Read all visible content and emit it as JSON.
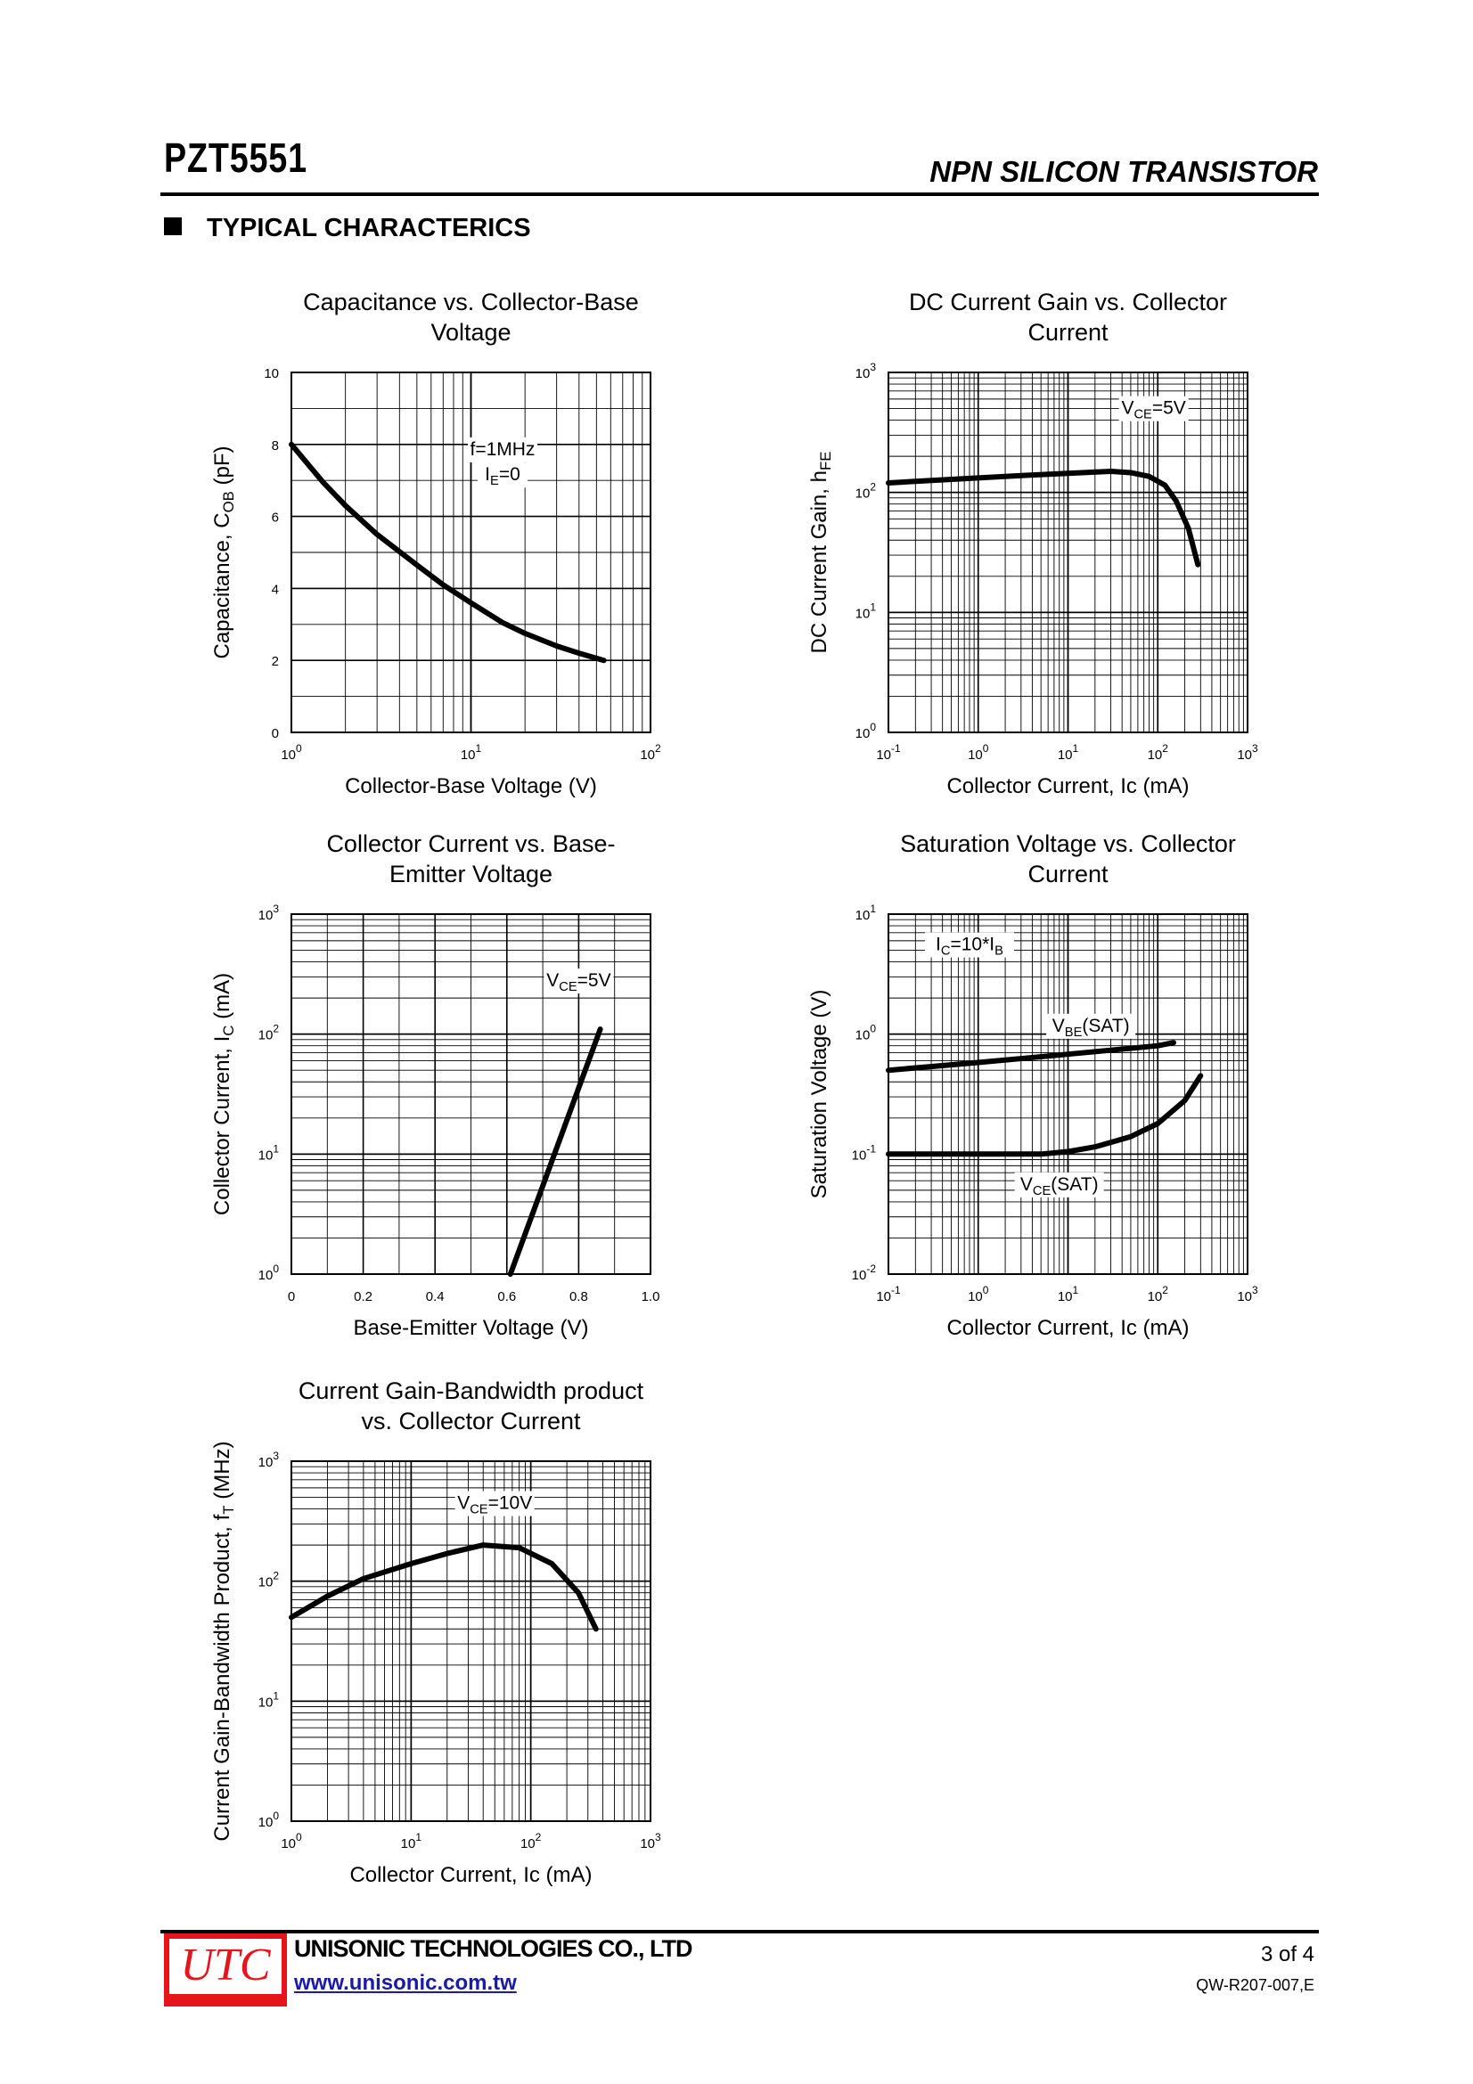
{
  "header": {
    "part_number": "PZT5551",
    "device_type": "NPN SILICON TRANSISTOR"
  },
  "section": {
    "title": "TYPICAL CHARACTERICS"
  },
  "footer": {
    "logo_text": "UTC",
    "company": "UNISONIC TECHNOLOGIES CO., LTD",
    "url": "www.unisonic.com.tw",
    "page": "3 of 4",
    "doc_code": "QW-R207-007,E"
  },
  "chart_data": [
    {
      "id": "cap",
      "type": "line",
      "title": [
        "Capacitance vs. Collector-Base",
        "Voltage"
      ],
      "xlabel": "Collector-Base Voltage (V)",
      "ylabel": "Capacitance, COB (pF)",
      "xscale": "log",
      "xlim": [
        1,
        100
      ],
      "yscale": "linear",
      "ylim": [
        0,
        10
      ],
      "xticks": [
        "10^0",
        "10^1",
        "10^2"
      ],
      "yticks": [
        "0",
        "2",
        "4",
        "6",
        "8",
        "10"
      ],
      "annotations": [
        {
          "text": "f=1MHz",
          "x": 15,
          "y": 7.7
        },
        {
          "text": "IE=0",
          "x": 15,
          "y": 7.0
        }
      ],
      "series": [
        {
          "x": [
            1,
            1.5,
            2,
            3,
            5,
            7,
            10,
            15,
            20,
            30,
            40,
            55
          ],
          "y": [
            8.0,
            6.95,
            6.3,
            5.5,
            4.65,
            4.1,
            3.6,
            3.05,
            2.75,
            2.4,
            2.2,
            2.0
          ]
        }
      ]
    },
    {
      "id": "hfe",
      "type": "line",
      "title": [
        "DC Current Gain vs. Collector",
        "Current"
      ],
      "xlabel": "Collector Current, Ic (mA)",
      "ylabel": "DC Current Gain, hFE",
      "xscale": "log",
      "xlim": [
        0.1,
        1000
      ],
      "yscale": "log",
      "ylim": [
        1,
        1000
      ],
      "xticks": [
        "10^-1",
        "10^0",
        "10^1",
        "10^2",
        "10^3"
      ],
      "yticks": [
        "10^0",
        "10^1",
        "10^2",
        "10^3"
      ],
      "annotations": [
        {
          "text": "VCE=5V",
          "x": 90,
          "y": 450
        }
      ],
      "series": [
        {
          "x": [
            0.1,
            0.3,
            1,
            3,
            10,
            30,
            50,
            80,
            120,
            160,
            220,
            280
          ],
          "y": [
            120,
            126,
            132,
            138,
            144,
            150,
            146,
            136,
            115,
            85,
            50,
            25
          ]
        }
      ]
    },
    {
      "id": "icvbe",
      "type": "line",
      "title": [
        "Collector Current vs. Base-",
        "Emitter Voltage"
      ],
      "xlabel": "Base-Emitter Voltage (V)",
      "ylabel": "Collector Current, IC  (mA)",
      "xscale": "linear",
      "xlim": [
        0,
        1.0
      ],
      "yscale": "log",
      "ylim": [
        1,
        1000
      ],
      "xticks": [
        "0",
        "0.2",
        "0.4",
        "0.6",
        "0.8",
        "1.0"
      ],
      "yticks": [
        "10^0",
        "10^1",
        "10^2",
        "10^3"
      ],
      "annotations": [
        {
          "text": "VCE=5V",
          "x": 0.8,
          "y": 250
        }
      ],
      "series": [
        {
          "x": [
            0.61,
            0.86
          ],
          "y": [
            1,
            110
          ]
        }
      ]
    },
    {
      "id": "vsat",
      "type": "line",
      "title": [
        "Saturation Voltage vs. Collector",
        "Current"
      ],
      "xlabel": "Collector Current, Ic (mA)",
      "ylabel": "Saturation Voltage (V)",
      "xscale": "log",
      "xlim": [
        0.1,
        1000
      ],
      "yscale": "log",
      "ylim": [
        0.01,
        10
      ],
      "xticks": [
        "10^-1",
        "10^0",
        "10^1",
        "10^2",
        "10^3"
      ],
      "yticks": [
        "10^-2",
        "10^-1",
        "10^0",
        "10^1"
      ],
      "annotations": [
        {
          "text": "IC=10*IB",
          "x": 0.8,
          "y": 5
        },
        {
          "text": "VBE(SAT)",
          "x": 18,
          "y": 1.05
        },
        {
          "text": "VCE(SAT)",
          "x": 8,
          "y": 0.05
        }
      ],
      "series": [
        {
          "name": "VBE(SAT)",
          "x": [
            0.1,
            1,
            10,
            100,
            150
          ],
          "y": [
            0.5,
            0.58,
            0.68,
            0.8,
            0.85
          ]
        },
        {
          "name": "VCE(SAT)",
          "x": [
            0.1,
            1,
            5,
            10,
            20,
            50,
            100,
            200,
            300
          ],
          "y": [
            0.1,
            0.1,
            0.1,
            0.105,
            0.115,
            0.14,
            0.18,
            0.28,
            0.45
          ]
        }
      ]
    },
    {
      "id": "ft",
      "type": "line",
      "title": [
        "Current Gain-Bandwidth product",
        "vs. Collector Current"
      ],
      "xlabel": "Collector Current, Ic (mA)",
      "ylabel": "Current Gain-Bandwidth Product, fT (MHz)",
      "xscale": "log",
      "xlim": [
        1,
        1000
      ],
      "yscale": "log",
      "ylim": [
        1,
        1000
      ],
      "xticks": [
        "10^0",
        "10^1",
        "10^2",
        "10^3"
      ],
      "yticks": [
        "10^0",
        "10^1",
        "10^2",
        "10^3"
      ],
      "annotations": [
        {
          "text": "VCE=10V",
          "x": 50,
          "y": 400
        }
      ],
      "series": [
        {
          "x": [
            1,
            2,
            4,
            10,
            20,
            40,
            80,
            150,
            250,
            350
          ],
          "y": [
            50,
            75,
            105,
            140,
            170,
            200,
            190,
            140,
            80,
            40
          ]
        }
      ]
    }
  ]
}
